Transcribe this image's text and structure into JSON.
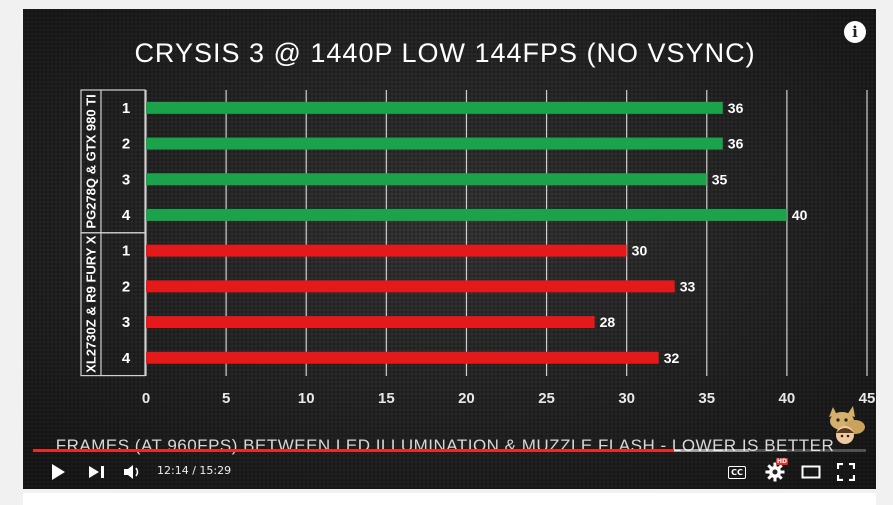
{
  "player": {
    "info_label": "i",
    "time": {
      "current": "12:14",
      "separator": "/",
      "duration": "15:29"
    },
    "progress": {
      "played_fraction": 0.77,
      "loaded_fraction": 0.86
    },
    "badges": {
      "hd": "HD",
      "cc": "CC"
    }
  },
  "chart_data": {
    "type": "bar",
    "orientation": "horizontal",
    "title": "CRYSIS 3 @ 1440P LOW 144FPS (NO VSYNC)",
    "xlabel": "FRAMES (AT 960FPS) BETWEEN LED ILLUMINATION & MUZZLE FLASH - LOWER IS BETTER",
    "xlim": [
      0,
      45
    ],
    "xticks": [
      "0",
      "5",
      "10",
      "15",
      "20",
      "25",
      "30",
      "35",
      "40",
      "45"
    ],
    "grid": true,
    "groups": [
      {
        "name": "PG278Q & GTX 980 TI",
        "color": "#1aa34a",
        "categories": [
          "1",
          "2",
          "3",
          "4"
        ],
        "values": [
          36,
          36,
          35,
          40
        ]
      },
      {
        "name": "XL2730Z & R9 FURY X",
        "color": "#e41a1a",
        "categories": [
          "1",
          "2",
          "3",
          "4"
        ],
        "values": [
          30,
          33,
          28,
          32
        ]
      }
    ]
  }
}
